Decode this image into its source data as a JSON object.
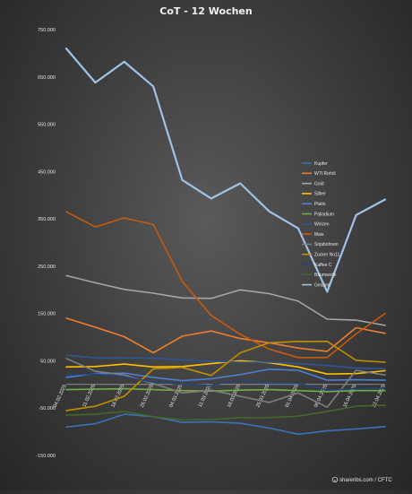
{
  "chart_data": {
    "type": "line",
    "title": "CoT - 12 Wochen",
    "xlabel": "",
    "ylabel": "",
    "ylim": [
      -150000,
      750000
    ],
    "y_ticks": [
      -150000,
      -50000,
      50000,
      150000,
      250000,
      350000,
      450000,
      550000,
      650000,
      750000
    ],
    "y_tick_labels": [
      "-150.000",
      "-50.000",
      "50.000",
      "150.000",
      "250.000",
      "350.000",
      "450.000",
      "550.000",
      "650.000",
      "750.000"
    ],
    "grid": false,
    "legend_position": "right",
    "x": [
      "04.02.2025",
      "11.02.2025",
      "18.02.2025",
      "25.02.2025",
      "04.03.2025",
      "11.03.2025",
      "18.03.2025",
      "25.03.2025",
      "01.04.2025",
      "08.04.2025",
      "15.04.2025",
      "22.04.2025"
    ],
    "series": [
      {
        "name": "Kupfer",
        "color": "#3f6fb5",
        "values": [
          -90000,
          -83000,
          -63000,
          -68000,
          -80000,
          -79000,
          -82000,
          -92000,
          -105000,
          -98000,
          -94000,
          -89000
        ]
      },
      {
        "name": "WTI Rohöl",
        "color": "#ed7d31",
        "values": [
          140000,
          121000,
          101000,
          67000,
          102000,
          113000,
          97000,
          88000,
          77000,
          70000,
          120000,
          108000
        ]
      },
      {
        "name": "Gold",
        "color": "#a5a5a5",
        "values": [
          230000,
          215000,
          201000,
          193000,
          183000,
          182000,
          200000,
          192000,
          176000,
          138000,
          136000,
          125000
        ]
      },
      {
        "name": "Silber",
        "color": "#ffc000",
        "values": [
          37000,
          38000,
          43000,
          37000,
          38000,
          44000,
          50000,
          46000,
          37000,
          22000,
          23000,
          29000
        ]
      },
      {
        "name": "Platin",
        "color": "#4a7fd4",
        "values": [
          15000,
          23000,
          24000,
          15000,
          8000,
          12000,
          21000,
          32000,
          30000,
          9000,
          10000,
          9000
        ]
      },
      {
        "name": "Palladium",
        "color": "#70ad47",
        "values": [
          -11000,
          -10000,
          -9000,
          -11000,
          -13000,
          -14000,
          -12000,
          -11000,
          -13000,
          -15000,
          -13000,
          -13000
        ]
      },
      {
        "name": "Weizen",
        "color": "#2f5597",
        "values": [
          62000,
          56000,
          56000,
          56000,
          52000,
          49000,
          47000,
          47000,
          44000,
          40000,
          35000,
          33000
        ]
      },
      {
        "name": "Mais",
        "color": "#c55a11",
        "values": [
          365000,
          333000,
          352000,
          338000,
          218000,
          146000,
          106000,
          75000,
          57000,
          57000,
          107000,
          150000
        ]
      },
      {
        "name": "Sojabohnen",
        "color": "#7f7f7f",
        "values": [
          55000,
          28000,
          20000,
          2000,
          -18000,
          -12000,
          -25000,
          -38000,
          -18000,
          -48000,
          30000,
          20000
        ]
      },
      {
        "name": "Zucker No11",
        "color": "#bf8f00",
        "values": [
          -55000,
          -46000,
          -25000,
          33000,
          36000,
          19000,
          67000,
          88000,
          91000,
          91000,
          51000,
          47000
        ]
      },
      {
        "name": "Kaffee C",
        "color": "#264478",
        "values": [
          20000,
          22000,
          16000,
          5000,
          0,
          -2000,
          10000,
          2000,
          2000,
          -12000,
          -9000,
          -8000
        ]
      },
      {
        "name": "Baumwolle",
        "color": "#43682b",
        "values": [
          -65000,
          -63000,
          -57000,
          -68000,
          -75000,
          -74000,
          -70000,
          -70000,
          -67000,
          -57000,
          -46000,
          -44000
        ]
      },
      {
        "name": "Gesamt",
        "color": "#9dc3e6",
        "values": [
          710000,
          638000,
          682000,
          630000,
          432000,
          393000,
          425000,
          366000,
          330000,
          196000,
          358000,
          391000
        ]
      }
    ]
  },
  "credit": {
    "icon": "copyright-icon",
    "text": "shareribs.com / CFTC"
  }
}
